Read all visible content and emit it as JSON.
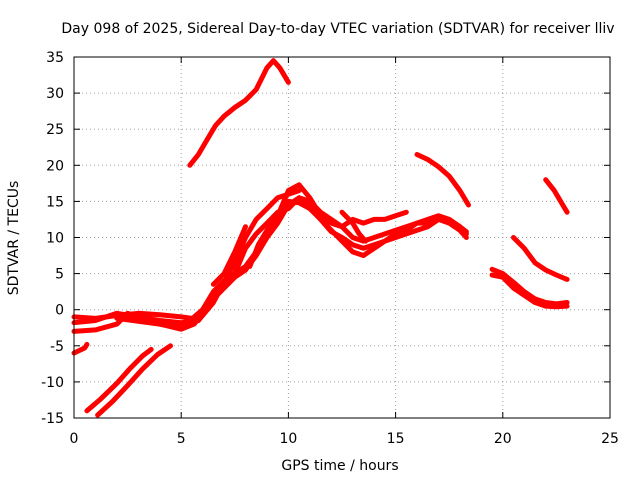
{
  "chart_data": {
    "type": "line",
    "title": "Day 098 of 2025, Sidereal Day-to-day VTEC variation (SDTVAR) for receiver lliv",
    "xlabel": "GPS time / hours",
    "ylabel": "SDTVAR / TECUs",
    "xlim": [
      0,
      25
    ],
    "ylim": [
      -15,
      35
    ],
    "xticks": [
      0,
      5,
      10,
      15,
      20,
      25
    ],
    "yticks": [
      -15,
      -10,
      -5,
      0,
      5,
      10,
      15,
      20,
      25,
      30,
      35
    ],
    "grid": true,
    "color": "#ff0000",
    "series": [
      {
        "points": [
          [
            0.0,
            -6.0
          ],
          [
            0.5,
            -5.3
          ],
          [
            0.6,
            -4.8
          ]
        ]
      },
      {
        "points": [
          [
            0.6,
            -14.0
          ],
          [
            1.2,
            -12.5
          ],
          [
            2.0,
            -10.2
          ],
          [
            2.6,
            -8.2
          ],
          [
            3.2,
            -6.4
          ],
          [
            3.6,
            -5.5
          ]
        ]
      },
      {
        "points": [
          [
            1.1,
            -14.6
          ],
          [
            1.8,
            -12.7
          ],
          [
            2.5,
            -10.5
          ],
          [
            3.2,
            -8.2
          ],
          [
            3.9,
            -6.2
          ],
          [
            4.5,
            -5.0
          ]
        ]
      },
      {
        "points": [
          [
            0.0,
            -1.0
          ],
          [
            1.0,
            -1.2
          ],
          [
            2.0,
            -0.8
          ],
          [
            3.0,
            -0.5
          ],
          [
            4.0,
            -0.7
          ],
          [
            5.0,
            -1.0
          ],
          [
            5.5,
            -1.2
          ]
        ]
      },
      {
        "points": [
          [
            0.0,
            -1.8
          ],
          [
            1.0,
            -1.5
          ],
          [
            2.0,
            -0.5
          ],
          [
            3.0,
            -1.0
          ],
          [
            4.0,
            -1.5
          ],
          [
            5.0,
            -1.8
          ],
          [
            5.8,
            -1.5
          ],
          [
            6.5,
            1.0
          ],
          [
            7.0,
            3.8
          ],
          [
            7.5,
            6.5
          ],
          [
            8.0,
            10.0
          ],
          [
            8.5,
            12.5
          ],
          [
            9.0,
            14.0
          ],
          [
            9.5,
            15.5
          ],
          [
            10.0,
            16.0
          ],
          [
            10.5,
            16.5
          ]
        ]
      },
      {
        "points": [
          [
            0.0,
            -3.0
          ],
          [
            1.0,
            -2.8
          ],
          [
            2.0,
            -2.0
          ],
          [
            2.5,
            -0.5
          ],
          [
            3.0,
            -1.2
          ],
          [
            4.0,
            -2.0
          ],
          [
            5.0,
            -2.5
          ],
          [
            5.8,
            -1.5
          ],
          [
            6.5,
            2.0
          ],
          [
            7.0,
            4.0
          ],
          [
            7.5,
            5.0
          ],
          [
            8.0,
            6.0
          ],
          [
            8.5,
            8.0
          ],
          [
            9.0,
            10.0
          ],
          [
            9.5,
            12.0
          ],
          [
            10.0,
            14.5
          ],
          [
            10.5,
            15.5
          ],
          [
            11.0,
            14.5
          ],
          [
            11.5,
            12.5
          ],
          [
            12.0,
            10.8
          ],
          [
            12.5,
            10.0
          ],
          [
            13.0,
            9.0
          ],
          [
            13.5,
            8.5
          ],
          [
            14.0,
            9.0
          ],
          [
            14.5,
            9.5
          ],
          [
            15.0,
            10.0
          ],
          [
            15.5,
            10.5
          ],
          [
            16.0,
            11.0
          ],
          [
            16.5,
            11.5
          ],
          [
            17.0,
            12.5
          ],
          [
            17.5,
            12.0
          ],
          [
            18.0,
            11.0
          ],
          [
            18.3,
            10.0
          ]
        ]
      },
      {
        "points": [
          [
            2.0,
            -1.2
          ],
          [
            3.0,
            -1.6
          ],
          [
            4.0,
            -2.0
          ],
          [
            5.0,
            -2.7
          ],
          [
            5.6,
            -2.0
          ],
          [
            6.0,
            -0.5
          ],
          [
            6.5,
            1.5
          ],
          [
            7.0,
            3.0
          ],
          [
            7.5,
            4.5
          ],
          [
            8.0,
            5.5
          ],
          [
            8.5,
            7.5
          ],
          [
            9.0,
            10.0
          ],
          [
            9.5,
            13.0
          ],
          [
            10.0,
            15.0
          ],
          [
            10.5,
            14.8
          ],
          [
            11.0,
            14.0
          ],
          [
            11.5,
            12.5
          ],
          [
            12.0,
            11.0
          ],
          [
            12.5,
            9.5
          ],
          [
            13.0,
            8.0
          ],
          [
            13.5,
            7.5
          ],
          [
            14.0,
            8.5
          ],
          [
            14.5,
            9.5
          ],
          [
            15.0,
            10.5
          ],
          [
            15.5,
            11.0
          ],
          [
            16.0,
            12.0
          ],
          [
            16.5,
            12.5
          ],
          [
            17.0,
            13.0
          ],
          [
            17.5,
            12.5
          ],
          [
            18.0,
            11.5
          ],
          [
            18.3,
            10.5
          ]
        ]
      },
      {
        "points": [
          [
            2.5,
            -0.8
          ],
          [
            3.5,
            -1.2
          ],
          [
            4.5,
            -2.2
          ],
          [
            5.3,
            -1.8
          ],
          [
            6.0,
            0.0
          ],
          [
            6.5,
            2.5
          ],
          [
            7.0,
            4.0
          ],
          [
            7.5,
            5.0
          ],
          [
            8.0,
            8.5
          ],
          [
            8.5,
            10.5
          ],
          [
            9.0,
            12.0
          ],
          [
            9.5,
            13.5
          ],
          [
            10.0,
            14.0
          ],
          [
            10.5,
            15.5
          ],
          [
            11.0,
            15.0
          ],
          [
            11.5,
            13.5
          ],
          [
            12.0,
            12.5
          ],
          [
            12.5,
            11.5
          ],
          [
            13.0,
            10.0
          ],
          [
            13.5,
            9.5
          ],
          [
            14.0,
            10.0
          ],
          [
            14.5,
            10.5
          ],
          [
            15.0,
            11.0
          ],
          [
            15.5,
            11.5
          ],
          [
            16.0,
            12.0
          ],
          [
            16.5,
            12.0
          ],
          [
            17.0,
            12.5
          ],
          [
            17.5,
            12.5
          ],
          [
            18.0,
            11.5
          ],
          [
            18.3,
            10.8
          ]
        ]
      },
      {
        "points": [
          [
            6.5,
            3.5
          ],
          [
            7.0,
            5.0
          ],
          [
            7.5,
            8.0
          ],
          [
            8.0,
            11.5
          ]
        ]
      },
      {
        "points": [
          [
            8.2,
            6.0
          ],
          [
            8.6,
            9.0
          ],
          [
            9.0,
            11.0
          ],
          [
            9.5,
            13.0
          ],
          [
            10.0,
            16.5
          ],
          [
            10.5,
            17.3
          ],
          [
            11.0,
            15.5
          ],
          [
            11.5,
            13.0
          ],
          [
            12.0,
            12.0
          ],
          [
            12.5,
            11.5
          ],
          [
            13.0,
            12.5
          ],
          [
            13.5,
            12.0
          ],
          [
            14.0,
            12.5
          ],
          [
            14.5,
            12.5
          ],
          [
            15.0,
            13.0
          ],
          [
            15.5,
            13.5
          ]
        ]
      },
      {
        "points": [
          [
            12.5,
            13.5
          ],
          [
            13.0,
            12.0
          ],
          [
            13.3,
            10.5
          ],
          [
            13.6,
            9.5
          ]
        ]
      },
      {
        "points": [
          [
            5.4,
            20.0
          ],
          [
            5.8,
            21.5
          ],
          [
            6.2,
            23.5
          ],
          [
            6.6,
            25.5
          ],
          [
            7.0,
            26.8
          ],
          [
            7.5,
            28.0
          ],
          [
            8.0,
            29.0
          ],
          [
            8.5,
            30.5
          ],
          [
            9.0,
            33.5
          ],
          [
            9.3,
            34.5
          ],
          [
            9.6,
            33.5
          ],
          [
            10.0,
            31.5
          ]
        ]
      },
      {
        "points": [
          [
            16.0,
            21.5
          ],
          [
            16.5,
            20.8
          ],
          [
            17.0,
            19.8
          ],
          [
            17.5,
            18.5
          ],
          [
            18.0,
            16.5
          ],
          [
            18.4,
            14.5
          ]
        ]
      },
      {
        "points": [
          [
            19.5,
            5.6
          ],
          [
            20.0,
            5.0
          ],
          [
            20.5,
            3.8
          ],
          [
            21.0,
            2.5
          ],
          [
            21.5,
            1.5
          ],
          [
            22.0,
            1.0
          ],
          [
            22.5,
            0.8
          ],
          [
            23.0,
            1.0
          ]
        ]
      },
      {
        "points": [
          [
            19.5,
            4.8
          ],
          [
            20.0,
            4.5
          ],
          [
            20.5,
            3.0
          ],
          [
            21.0,
            2.0
          ],
          [
            21.5,
            1.0
          ],
          [
            22.0,
            0.5
          ],
          [
            22.5,
            0.4
          ],
          [
            23.0,
            0.5
          ]
        ]
      },
      {
        "points": [
          [
            20.5,
            10.0
          ],
          [
            21.0,
            8.5
          ],
          [
            21.5,
            6.5
          ],
          [
            22.0,
            5.5
          ],
          [
            22.5,
            4.8
          ],
          [
            23.0,
            4.2
          ]
        ]
      },
      {
        "points": [
          [
            22.0,
            18.0
          ],
          [
            22.4,
            16.5
          ],
          [
            22.8,
            14.5
          ],
          [
            23.0,
            13.5
          ]
        ]
      }
    ]
  }
}
